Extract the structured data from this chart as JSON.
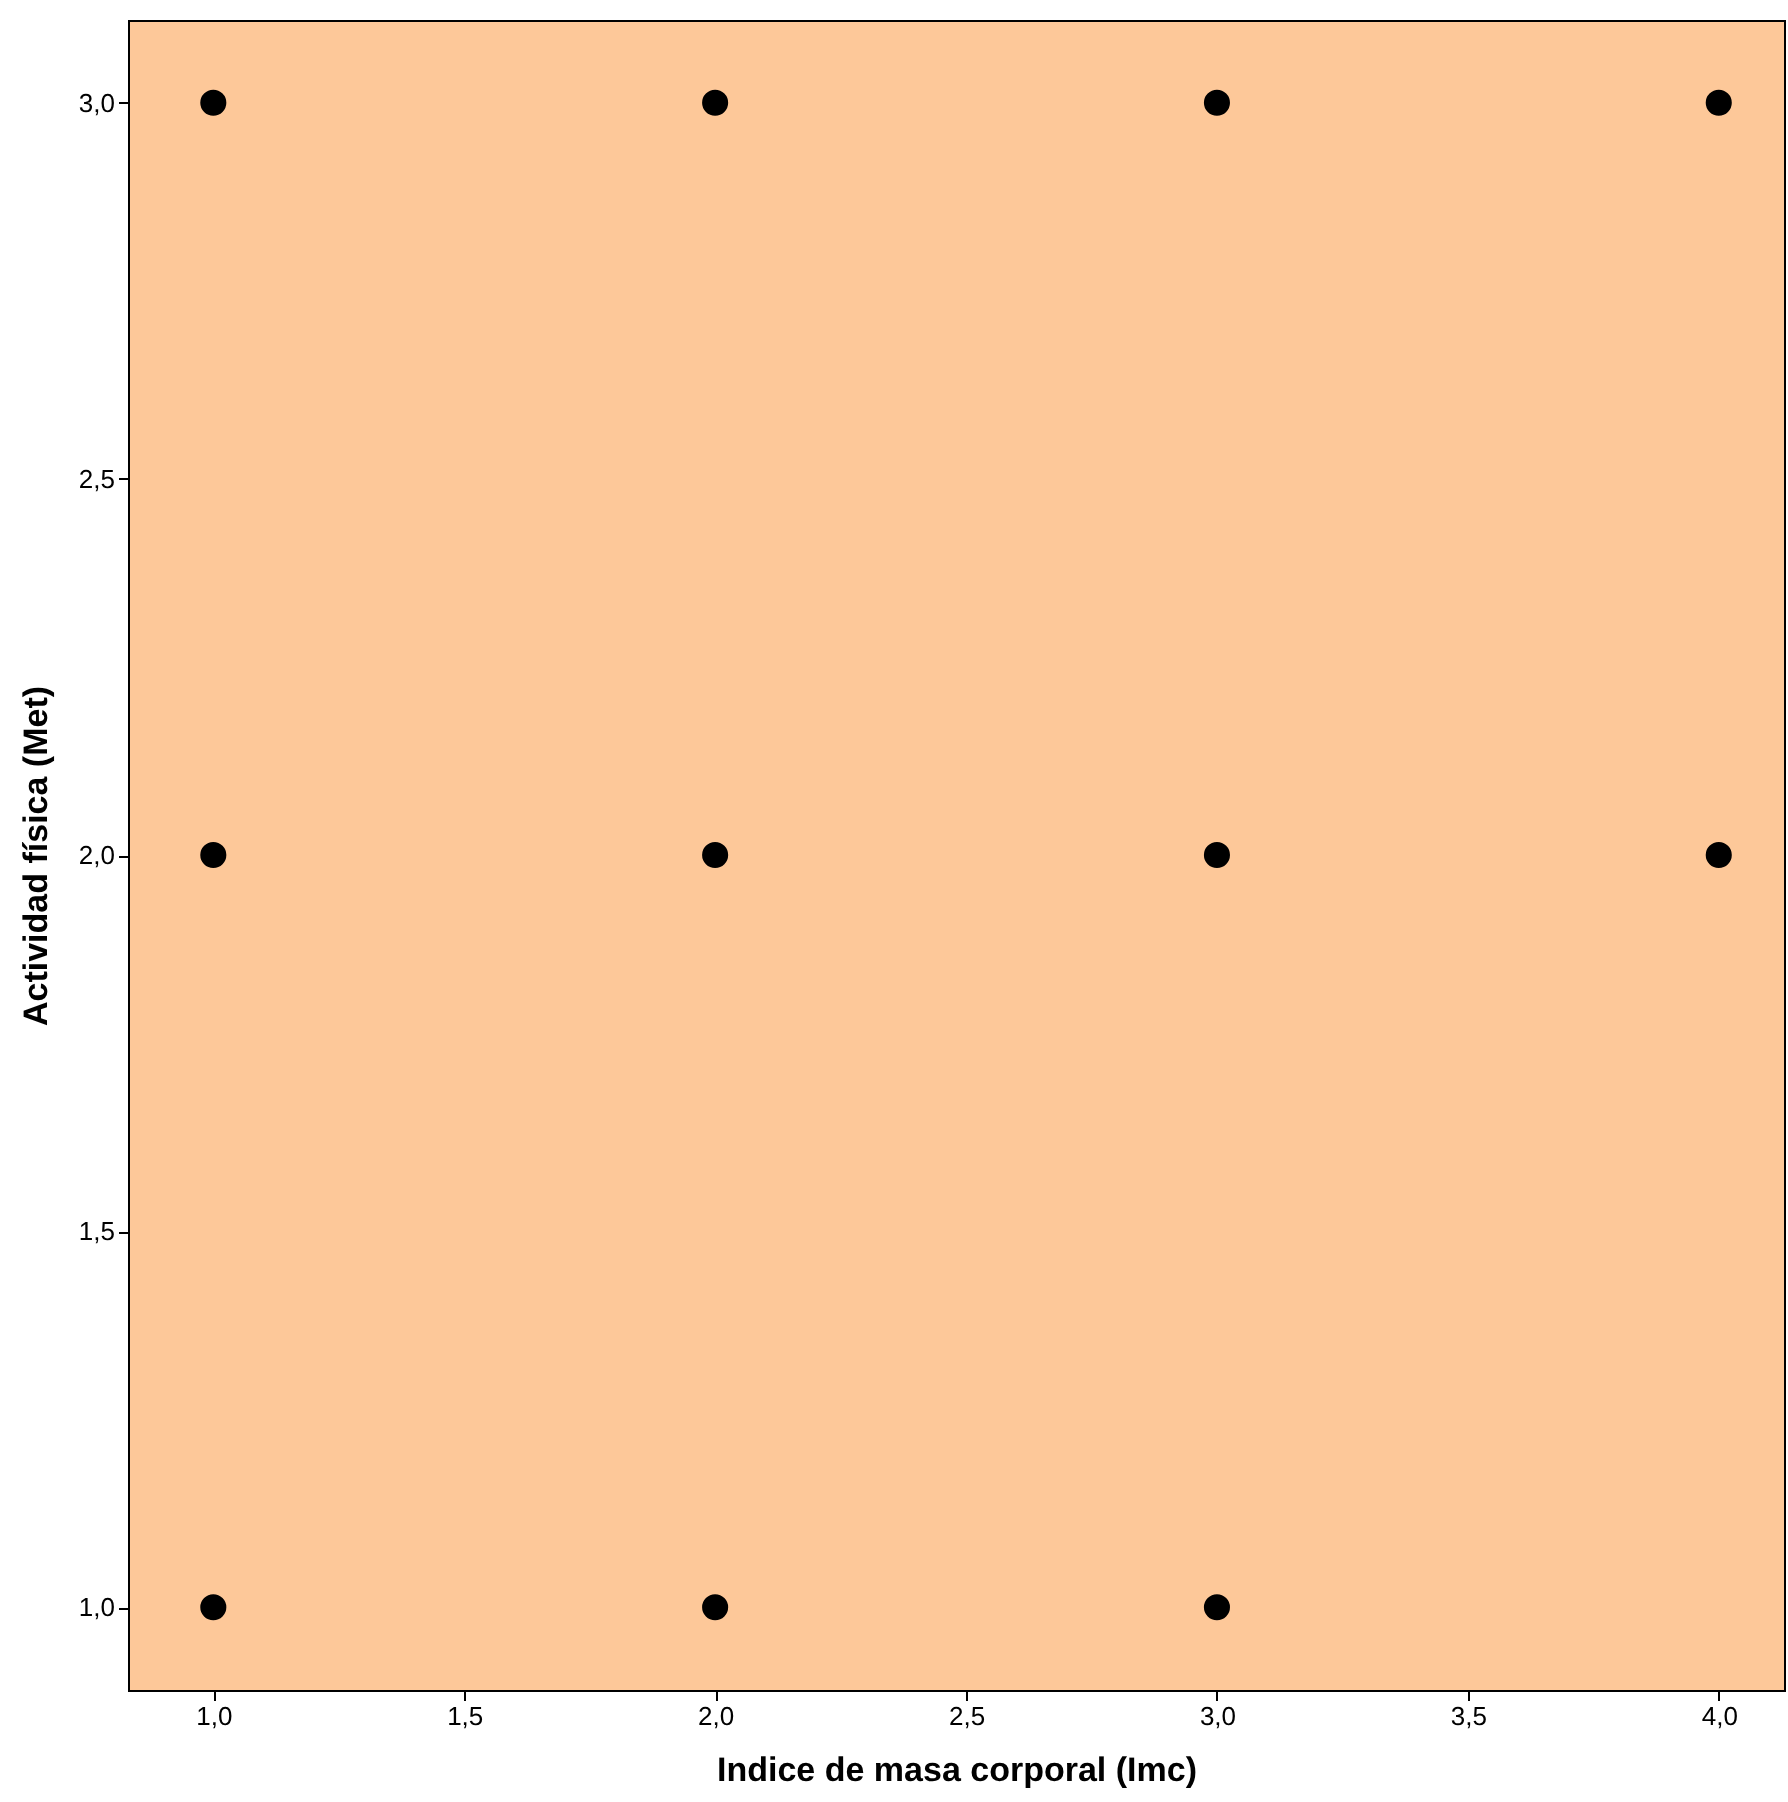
{
  "chart_data": {
    "type": "scatter",
    "xlabel": "Indice de masa corporal (Imc)",
    "ylabel": "Actividad física (Met)",
    "x": [
      1,
      1,
      1,
      2,
      2,
      2,
      3,
      3,
      3,
      4,
      4
    ],
    "series": [
      {
        "color": "#000000",
        "values": [
          1,
          2,
          3,
          1,
          2,
          3,
          1,
          2,
          3,
          2,
          3
        ]
      }
    ],
    "xlim": [
      0.83,
      4.13
    ],
    "ylim": [
      0.89,
      3.11
    ],
    "xticks": [
      {
        "value": 1,
        "label": "1,0"
      },
      {
        "value": 1.5,
        "label": "1,5"
      },
      {
        "value": 2,
        "label": "2,0"
      },
      {
        "value": 2.5,
        "label": "2,5"
      },
      {
        "value": 3,
        "label": "3,0"
      },
      {
        "value": 3.5,
        "label": "3,5"
      },
      {
        "value": 4,
        "label": "4,0"
      }
    ],
    "yticks": [
      {
        "value": 1,
        "label": "1,0"
      },
      {
        "value": 1.5,
        "label": "1,5"
      },
      {
        "value": 2,
        "label": "2,0"
      },
      {
        "value": 2.5,
        "label": "2,5"
      },
      {
        "value": 3,
        "label": "3,0"
      }
    ],
    "marker": "circle",
    "grid": false
  }
}
